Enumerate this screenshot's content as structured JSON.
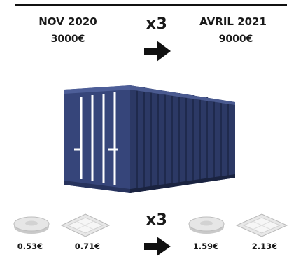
{
  "top": {
    "left_date": "NOV 2020",
    "left_price": "3000€",
    "multiplier": "x3",
    "right_date": "AVRIL 2021",
    "right_price": "9000€"
  },
  "container": {
    "icon": "shipping-container-icon",
    "body_color": "#2c3965",
    "side_color": "#1d2748",
    "door_color": "#36457a"
  },
  "bottom": {
    "multiplier": "x3",
    "before": [
      {
        "icon": "round-ceiling-light-icon",
        "price": "0.53€"
      },
      {
        "icon": "square-ceiling-panel-icon",
        "price": "0.71€"
      }
    ],
    "after": [
      {
        "icon": "round-ceiling-light-icon",
        "price": "1.59€"
      },
      {
        "icon": "square-ceiling-panel-icon",
        "price": "2.13€"
      }
    ]
  }
}
